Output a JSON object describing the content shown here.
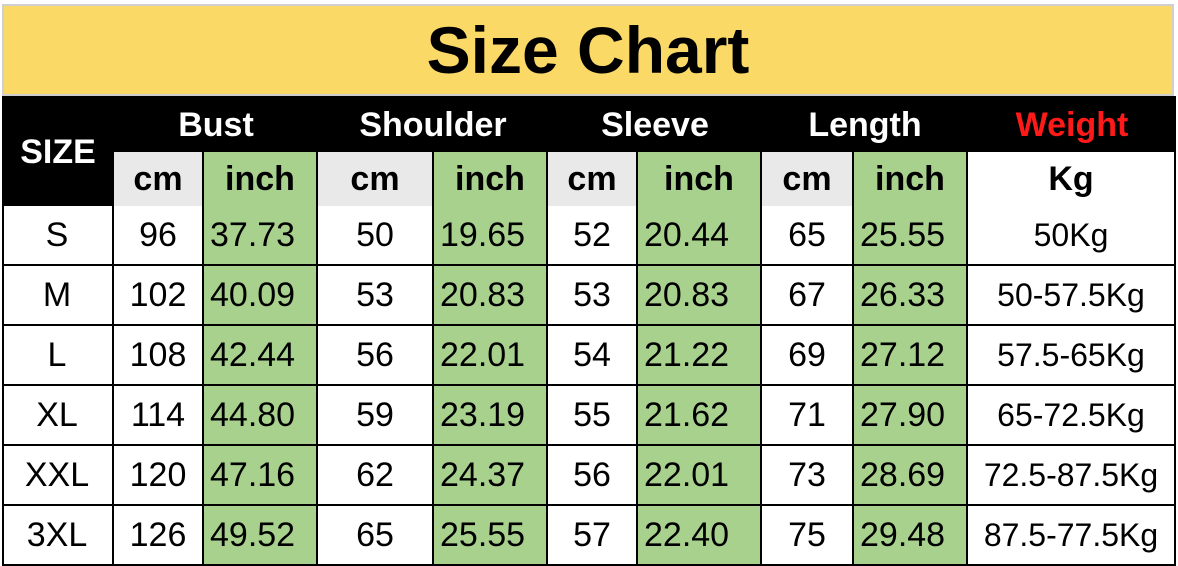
{
  "title": "Size Chart",
  "colors": {
    "title_bg": "#fbd967",
    "header_bg": "#000000",
    "header_text": "#ffffff",
    "weight_header_text": "#ff1a1a",
    "cm_bg": "#e9e9e9",
    "inch_bg": "#a9d18e"
  },
  "headers": {
    "size": "SIZE",
    "bust": "Bust",
    "shoulder": "Shoulder",
    "sleeve": "Sleeve",
    "length": "Length",
    "weight": "Weight"
  },
  "units": {
    "cm": "cm",
    "inch": "inch",
    "kg": "Kg"
  },
  "rows": [
    {
      "size": "S",
      "bust_cm": "96",
      "bust_in": "37.73",
      "shoulder_cm": "50",
      "shoulder_in": "19.65",
      "sleeve_cm": "52",
      "sleeve_in": "20.44",
      "length_cm": "65",
      "length_in": "25.55",
      "weight": "50Kg"
    },
    {
      "size": "M",
      "bust_cm": "102",
      "bust_in": "40.09",
      "shoulder_cm": "53",
      "shoulder_in": "20.83",
      "sleeve_cm": "53",
      "sleeve_in": "20.83",
      "length_cm": "67",
      "length_in": "26.33",
      "weight": "50-57.5Kg"
    },
    {
      "size": "L",
      "bust_cm": "108",
      "bust_in": "42.44",
      "shoulder_cm": "56",
      "shoulder_in": "22.01",
      "sleeve_cm": "54",
      "sleeve_in": "21.22",
      "length_cm": "69",
      "length_in": "27.12",
      "weight": "57.5-65Kg"
    },
    {
      "size": "XL",
      "bust_cm": "114",
      "bust_in": "44.80",
      "shoulder_cm": "59",
      "shoulder_in": "23.19",
      "sleeve_cm": "55",
      "sleeve_in": "21.62",
      "length_cm": "71",
      "length_in": "27.90",
      "weight": "65-72.5Kg"
    },
    {
      "size": "XXL",
      "bust_cm": "120",
      "bust_in": "47.16",
      "shoulder_cm": "62",
      "shoulder_in": "24.37",
      "sleeve_cm": "56",
      "sleeve_in": "22.01",
      "length_cm": "73",
      "length_in": "28.69",
      "weight": "72.5-87.5Kg"
    },
    {
      "size": "3XL",
      "bust_cm": "126",
      "bust_in": "49.52",
      "shoulder_cm": "65",
      "shoulder_in": "25.55",
      "sleeve_cm": "57",
      "sleeve_in": "22.40",
      "length_cm": "75",
      "length_in": "29.48",
      "weight": "87.5-77.5Kg"
    }
  ]
}
